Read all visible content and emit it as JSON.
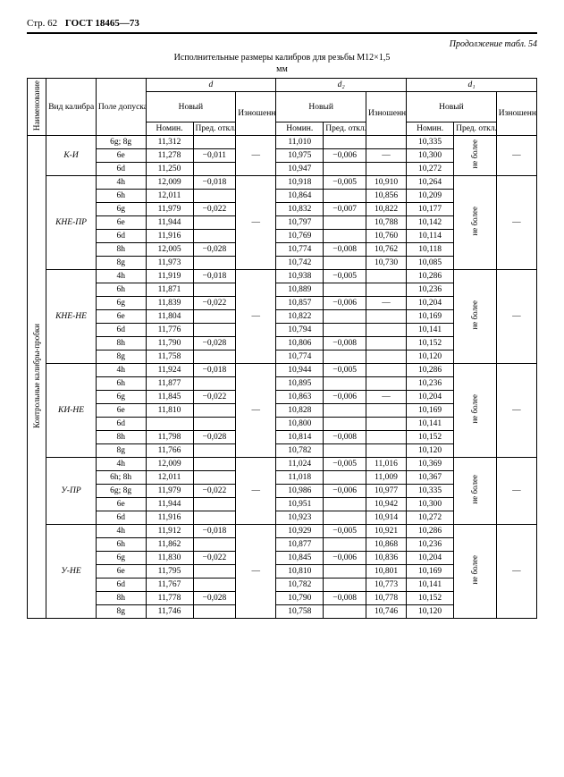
{
  "header": {
    "page": "Стр. 62",
    "gost": "ГОСТ 18465—73"
  },
  "continuation": "Продолжение табл. 54",
  "title": "Исполнительные размеры калибров для резьбы M12×1,5",
  "unit": "мм",
  "cols": {
    "naim": "Наименование",
    "vid": "Вид калибра",
    "tol": "Поле допуска резьбы",
    "d": "d",
    "d2": "d₂",
    "d1": "d₁",
    "new": "Новый",
    "nom": "Номин.",
    "pred": "Пред. откл.",
    "izn": "Изношенный"
  },
  "sidegroup": "Контрольные калибры-пробки",
  "ne_bolee": "не более",
  "dash": "—",
  "groups": [
    {
      "vid": "К-И",
      "rows": [
        {
          "tol": "6g; 8g",
          "d_nom": "11,312",
          "d_pred": "",
          "d2_nom": "11,010",
          "d2_pred": "",
          "d2_izn": "",
          "d1_nom": "10,335"
        },
        {
          "tol": "6e",
          "d_nom": "11,278",
          "d_pred": "−0,011",
          "d2_nom": "10,975",
          "d2_pred": "−0,006",
          "d2_izn": "—",
          "d1_nom": "10,300"
        },
        {
          "tol": "6d",
          "d_nom": "11,250",
          "d_pred": "",
          "d2_nom": "10,947",
          "d2_pred": "",
          "d2_izn": "",
          "d1_nom": "10,272"
        }
      ],
      "d_izn": "—",
      "d1_pred": "не более",
      "d1_izn": "—",
      "d1_izn2": "—"
    },
    {
      "vid": "КНЕ-ПР",
      "rows": [
        {
          "tol": "4h",
          "d_nom": "12,009",
          "d_pred": "−0,018",
          "d2_nom": "10,918",
          "d2_pred": "−0,005",
          "d2_izn": "10,910",
          "d1_nom": "10,264"
        },
        {
          "tol": "6h",
          "d_nom": "12,011",
          "d_pred": "",
          "d2_nom": "10,864",
          "d2_pred": "",
          "d2_izn": "10,856",
          "d1_nom": "10,209"
        },
        {
          "tol": "6g",
          "d_nom": "11,979",
          "d_pred": "−0,022",
          "d2_nom": "10,832",
          "d2_pred": "−0,007",
          "d2_izn": "10,822",
          "d1_nom": "10,177"
        },
        {
          "tol": "6e",
          "d_nom": "11,944",
          "d_pred": "",
          "d2_nom": "10,797",
          "d2_pred": "",
          "d2_izn": "10,788",
          "d1_nom": "10,142"
        },
        {
          "tol": "6d",
          "d_nom": "11,916",
          "d_pred": "",
          "d2_nom": "10,769",
          "d2_pred": "",
          "d2_izn": "10,760",
          "d1_nom": "10,114"
        },
        {
          "tol": "8h",
          "d_nom": "12,005",
          "d_pred": "−0,028",
          "d2_nom": "10,774",
          "d2_pred": "−0,008",
          "d2_izn": "10,762",
          "d1_nom": "10,118"
        },
        {
          "tol": "8g",
          "d_nom": "11,973",
          "d_pred": "",
          "d2_nom": "10,742",
          "d2_pred": "",
          "d2_izn": "10,730",
          "d1_nom": "10,085"
        }
      ],
      "d_izn": "—",
      "d1_pred": "не более",
      "d1_izn": "—",
      "d1_izn2": "—"
    },
    {
      "vid": "КНЕ-НЕ",
      "rows": [
        {
          "tol": "4h",
          "d_nom": "11,919",
          "d_pred": "−0,018",
          "d2_nom": "10,938",
          "d2_pred": "−0,005",
          "d2_izn": "",
          "d1_nom": "10,286"
        },
        {
          "tol": "6h",
          "d_nom": "11,871",
          "d_pred": "",
          "d2_nom": "10,889",
          "d2_pred": "",
          "d2_izn": "",
          "d1_nom": "10,236"
        },
        {
          "tol": "6g",
          "d_nom": "11,839",
          "d_pred": "−0,022",
          "d2_nom": "10,857",
          "d2_pred": "−0,006",
          "d2_izn": "—",
          "d1_nom": "10,204"
        },
        {
          "tol": "6e",
          "d_nom": "11,804",
          "d_pred": "",
          "d2_nom": "10,822",
          "d2_pred": "",
          "d2_izn": "",
          "d1_nom": "10,169"
        },
        {
          "tol": "6d",
          "d_nom": "11,776",
          "d_pred": "",
          "d2_nom": "10,794",
          "d2_pred": "",
          "d2_izn": "",
          "d1_nom": "10,141"
        },
        {
          "tol": "8h",
          "d_nom": "11,790",
          "d_pred": "−0,028",
          "d2_nom": "10,806",
          "d2_pred": "−0,008",
          "d2_izn": "",
          "d1_nom": "10,152"
        },
        {
          "tol": "8g",
          "d_nom": "11,758",
          "d_pred": "",
          "d2_nom": "10,774",
          "d2_pred": "",
          "d2_izn": "",
          "d1_nom": "10,120"
        }
      ],
      "d_izn": "—",
      "d1_pred": "не более",
      "d1_izn": "—",
      "d1_izn2": "—"
    },
    {
      "vid": "КИ-НЕ",
      "rows": [
        {
          "tol": "4h",
          "d_nom": "11,924",
          "d_pred": "−0,018",
          "d2_nom": "10,944",
          "d2_pred": "−0,005",
          "d2_izn": "",
          "d1_nom": "10,286"
        },
        {
          "tol": "6h",
          "d_nom": "11,877",
          "d_pred": "",
          "d2_nom": "10,895",
          "d2_pred": "",
          "d2_izn": "",
          "d1_nom": "10,236"
        },
        {
          "tol": "6g",
          "d_nom": "11,845",
          "d_pred": "−0,022",
          "d2_nom": "10,863",
          "d2_pred": "−0,006",
          "d2_izn": "—",
          "d1_nom": "10,204"
        },
        {
          "tol": "6e",
          "d_nom": "11,810",
          "d_pred": "",
          "d2_nom": "10,828",
          "d2_pred": "",
          "d2_izn": "",
          "d1_nom": "10,169"
        },
        {
          "tol": "6d",
          "d_nom": "",
          "d_pred": "",
          "d2_nom": "10,800",
          "d2_pred": "",
          "d2_izn": "",
          "d1_nom": "10,141"
        },
        {
          "tol": "8h",
          "d_nom": "11,798",
          "d_pred": "−0,028",
          "d2_nom": "10,814",
          "d2_pred": "−0,008",
          "d2_izn": "",
          "d1_nom": "10,152"
        },
        {
          "tol": "8g",
          "d_nom": "11,766",
          "d_pred": "",
          "d2_nom": "10,782",
          "d2_pred": "",
          "d2_izn": "",
          "d1_nom": "10,120"
        }
      ],
      "d_izn": "—",
      "d1_pred": "не более",
      "d1_izn": "—",
      "d1_izn2": "—"
    },
    {
      "vid": "У-ПР",
      "rows": [
        {
          "tol": "4h",
          "d_nom": "12,009",
          "d_pred": "",
          "d2_nom": "11,024",
          "d2_pred": "−0,005",
          "d2_izn": "11,016",
          "d1_nom": "10,369"
        },
        {
          "tol": "6h; 8h",
          "d_nom": "12,011",
          "d_pred": "",
          "d2_nom": "11,018",
          "d2_pred": "",
          "d2_izn": "11,009",
          "d1_nom": "10,367"
        },
        {
          "tol": "6g; 8g",
          "d_nom": "11,979",
          "d_pred": "−0,022",
          "d2_nom": "10,986",
          "d2_pred": "−0,006",
          "d2_izn": "10,977",
          "d1_nom": "10,335"
        },
        {
          "tol": "6e",
          "d_nom": "11,944",
          "d_pred": "",
          "d2_nom": "10,951",
          "d2_pred": "",
          "d2_izn": "10,942",
          "d1_nom": "10,300"
        },
        {
          "tol": "6d",
          "d_nom": "11,916",
          "d_pred": "",
          "d2_nom": "10,923",
          "d2_pred": "",
          "d2_izn": "10,914",
          "d1_nom": "10,272"
        }
      ],
      "d_izn": "—",
      "d1_pred": "не более",
      "d1_izn": "—",
      "d1_izn2": "—"
    },
    {
      "vid": "У-НЕ",
      "rows": [
        {
          "tol": "4h",
          "d_nom": "11,912",
          "d_pred": "−0,018",
          "d2_nom": "10,929",
          "d2_pred": "−0,005",
          "d2_izn": "10,921",
          "d1_nom": "10,286"
        },
        {
          "tol": "6h",
          "d_nom": "11,862",
          "d_pred": "",
          "d2_nom": "10,877",
          "d2_pred": "",
          "d2_izn": "10,868",
          "d1_nom": "10,236"
        },
        {
          "tol": "6g",
          "d_nom": "11,830",
          "d_pred": "−0,022",
          "d2_nom": "10,845",
          "d2_pred": "−0,006",
          "d2_izn": "10,836",
          "d1_nom": "10,204"
        },
        {
          "tol": "6e",
          "d_nom": "11,795",
          "d_pred": "",
          "d2_nom": "10,810",
          "d2_pred": "",
          "d2_izn": "10,801",
          "d1_nom": "10,169"
        },
        {
          "tol": "6d",
          "d_nom": "11,767",
          "d_pred": "",
          "d2_nom": "10,782",
          "d2_pred": "",
          "d2_izn": "10,773",
          "d1_nom": "10,141"
        },
        {
          "tol": "8h",
          "d_nom": "11,778",
          "d_pred": "−0,028",
          "d2_nom": "10,790",
          "d2_pred": "−0,008",
          "d2_izn": "10,778",
          "d1_nom": "10,152"
        },
        {
          "tol": "8g",
          "d_nom": "11,746",
          "d_pred": "",
          "d2_nom": "10,758",
          "d2_pred": "",
          "d2_izn": "10,746",
          "d1_nom": "10,120"
        }
      ],
      "d_izn": "—",
      "d1_pred": "не более",
      "d1_izn": "—",
      "d1_izn2": "—"
    }
  ]
}
